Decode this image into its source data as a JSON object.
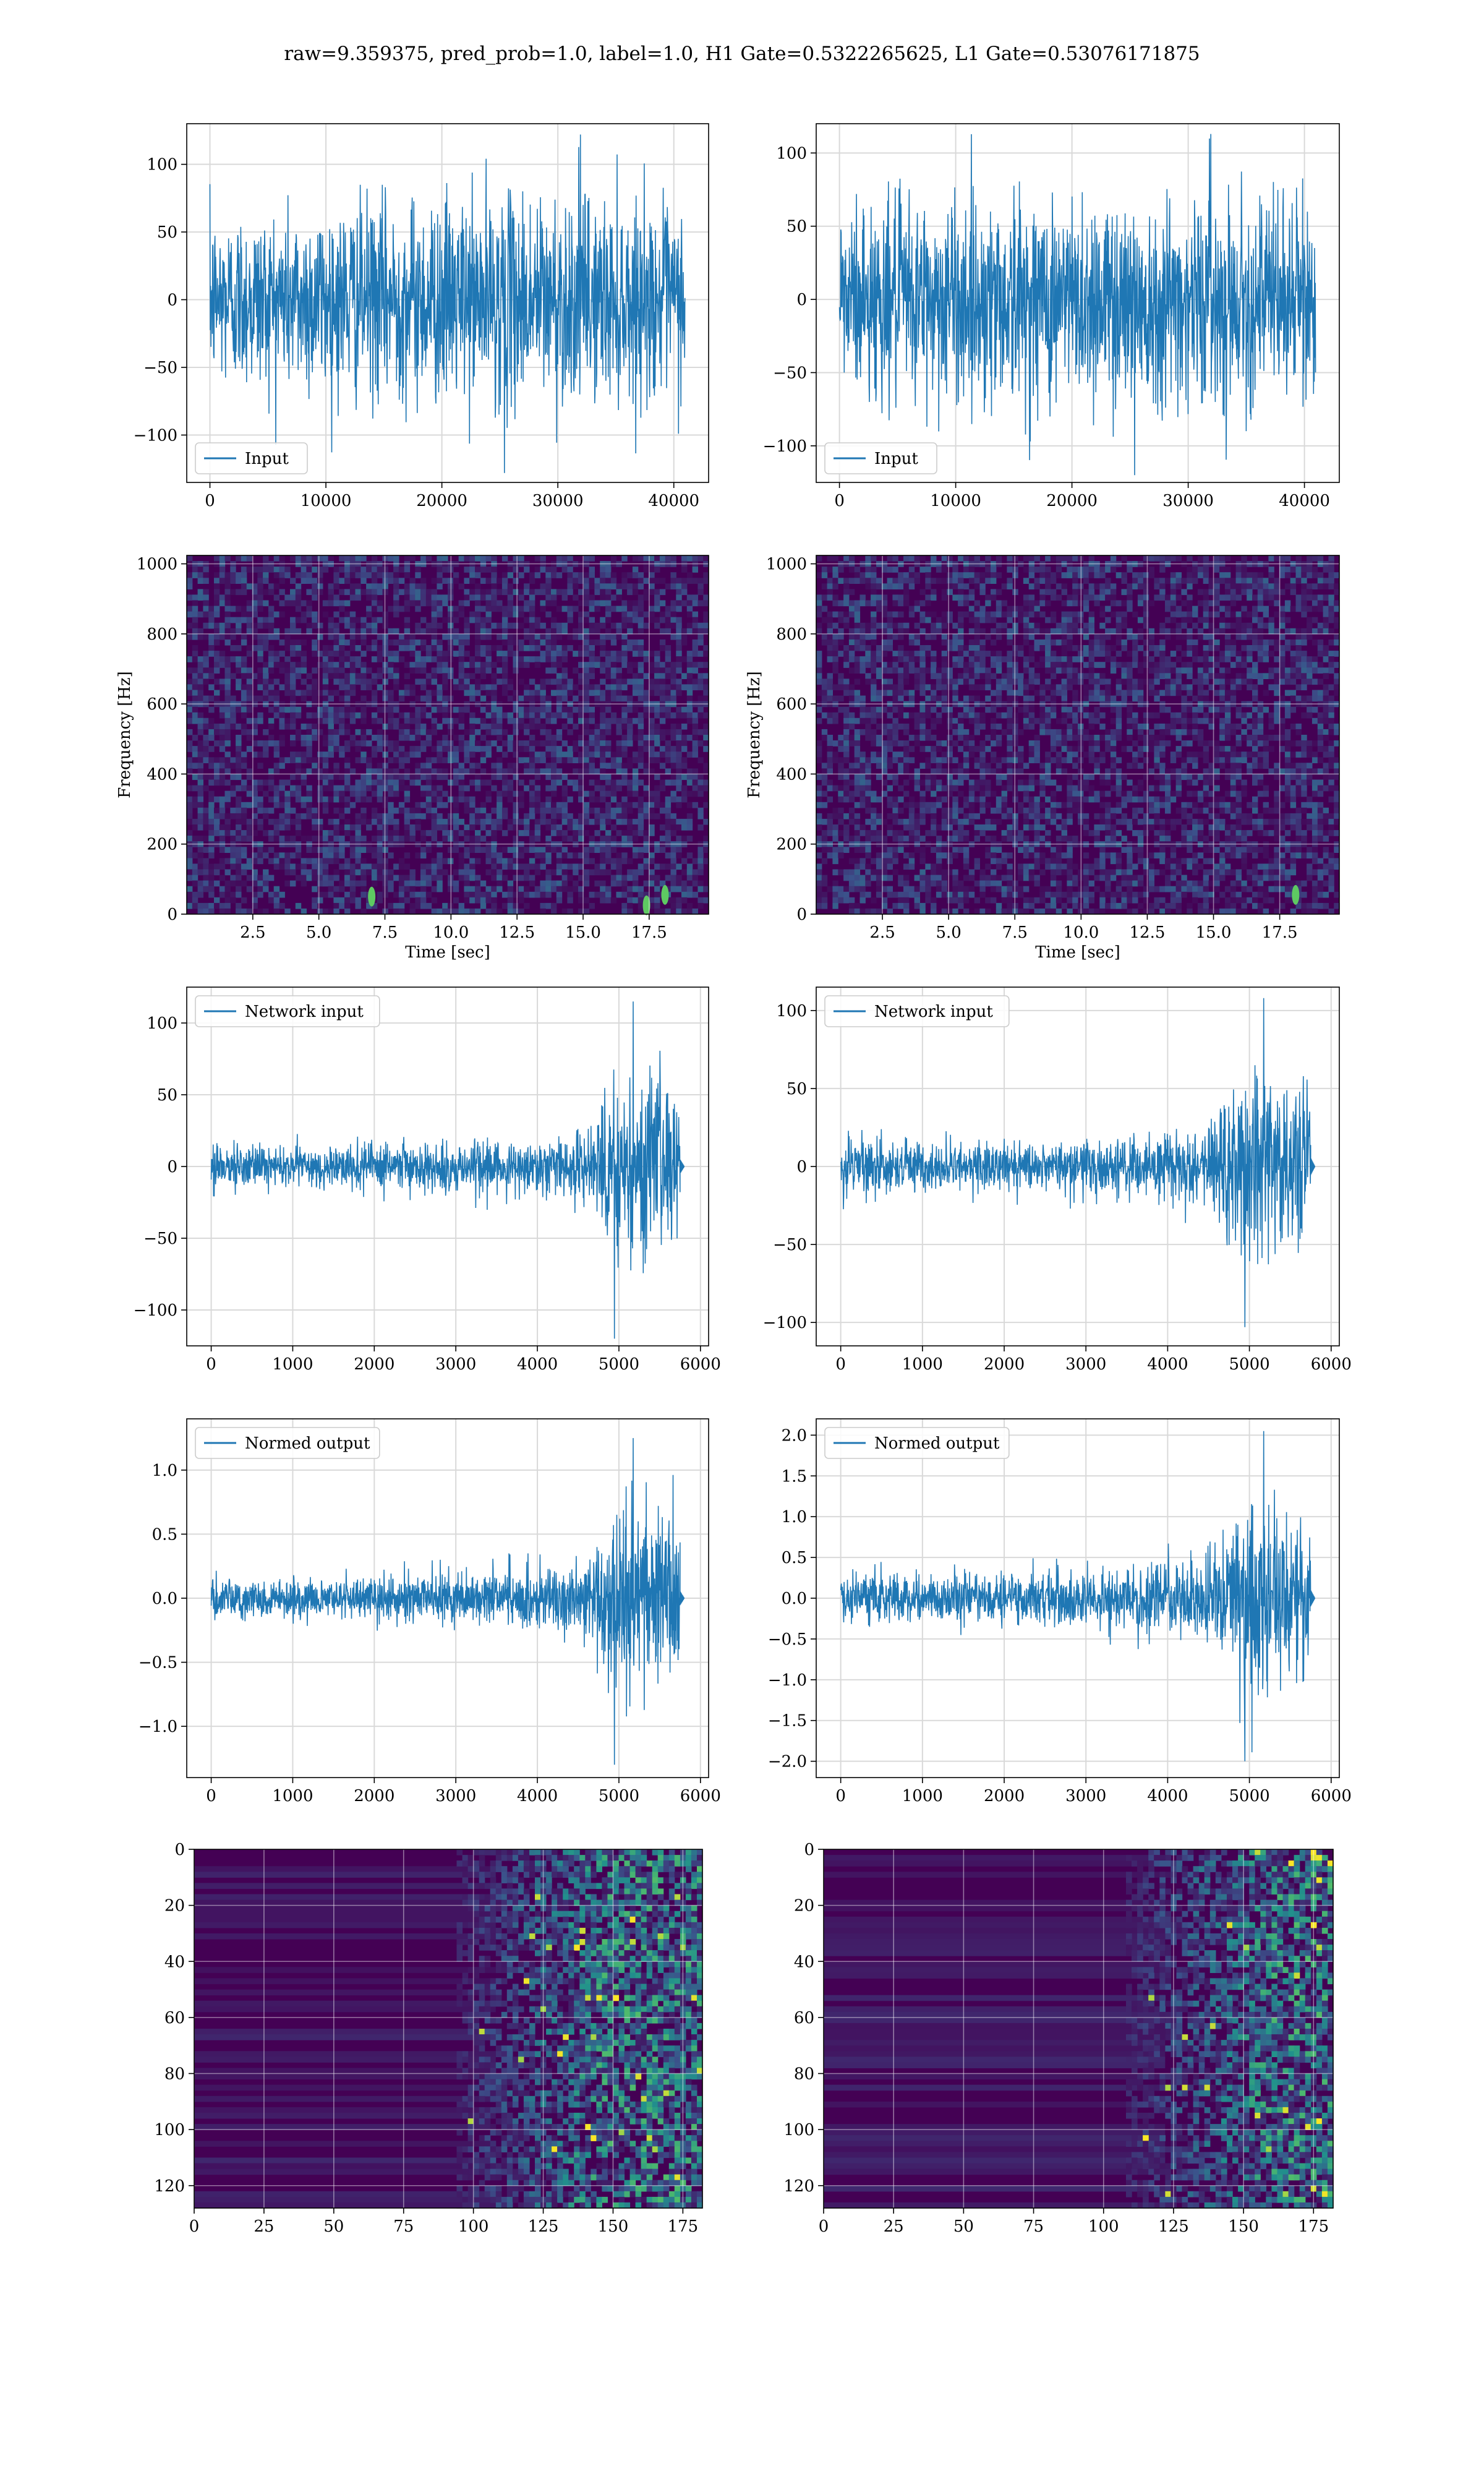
{
  "figure": {
    "suptitle": "raw=9.359375, pred_prob=1.0, label=1.0, H1 Gate=0.5322265625, L1 Gate=0.53076171875",
    "colors": {
      "line": "#1f77b4",
      "grid": "#d9d9d9",
      "viridis_low": "#440154",
      "viridis_mid": "#21918c",
      "viridis_high": "#fde725"
    }
  },
  "chart_data": [
    {
      "id": "input_h1",
      "type": "line",
      "legend": "Input",
      "legend_pos": "lower-left",
      "xlim": [
        -2000,
        43000
      ],
      "ylim": [
        -135,
        130
      ],
      "xticks": [
        0,
        10000,
        20000,
        30000,
        40000
      ],
      "yticks": [
        -100,
        -50,
        0,
        50,
        100
      ],
      "series": [
        {
          "name": "Input",
          "x_range": [
            0,
            40960
          ],
          "amplitude_envelope": [
            [
              0,
              80
            ],
            [
              10000,
              90
            ],
            [
              20000,
              95
            ],
            [
              30000,
              100
            ],
            [
              40960,
              85
            ]
          ],
          "peak_max": 122,
          "peak_min": -128
        }
      ],
      "grid": true
    },
    {
      "id": "input_l1",
      "type": "line",
      "legend": "Input",
      "legend_pos": "lower-left",
      "xlim": [
        -2000,
        43000
      ],
      "ylim": [
        -125,
        120
      ],
      "xticks": [
        0,
        10000,
        20000,
        30000,
        40000
      ],
      "yticks": [
        -100,
        -50,
        0,
        50,
        100
      ],
      "series": [
        {
          "name": "Input",
          "x_range": [
            0,
            40960
          ],
          "amplitude_envelope": [
            [
              0,
              85
            ],
            [
              10000,
              90
            ],
            [
              20000,
              92
            ],
            [
              30000,
              90
            ],
            [
              40960,
              85
            ]
          ],
          "peak_max": 113,
          "peak_min": -120
        }
      ],
      "grid": true
    },
    {
      "id": "spec_h1",
      "type": "heatmap",
      "xlabel": "Time [sec]",
      "ylabel": "Frequency [Hz]",
      "xlim": [
        0,
        19.75
      ],
      "ylim": [
        0,
        1024
      ],
      "xticks": [
        "2.5",
        "5.0",
        "7.5",
        "10.0",
        "12.5",
        "15.0",
        "17.5"
      ],
      "yticks": [
        "0",
        "200",
        "400",
        "600",
        "800",
        "1000"
      ],
      "colormap": "viridis",
      "hotspots": [
        {
          "t": 7.0,
          "f": 50
        },
        {
          "t": 18.1,
          "f": 55
        },
        {
          "t": 17.4,
          "f": 25
        }
      ],
      "grid": true
    },
    {
      "id": "spec_l1",
      "type": "heatmap",
      "xlabel": "Time [sec]",
      "ylabel": "Frequency [Hz]",
      "xlim": [
        0,
        19.75
      ],
      "ylim": [
        0,
        1024
      ],
      "xticks": [
        "2.5",
        "5.0",
        "7.5",
        "10.0",
        "12.5",
        "15.0",
        "17.5"
      ],
      "yticks": [
        "0",
        "200",
        "400",
        "600",
        "800",
        "1000"
      ],
      "colormap": "viridis",
      "hotspots": [
        {
          "t": 18.1,
          "f": 55
        }
      ],
      "grid": true
    },
    {
      "id": "net_h1",
      "type": "line",
      "legend": "Network input",
      "legend_pos": "upper-left",
      "xlim": [
        -300,
        6100
      ],
      "ylim": [
        -125,
        125
      ],
      "xticks": [
        0,
        1000,
        2000,
        3000,
        4000,
        5000,
        6000
      ],
      "yticks": [
        -100,
        -50,
        0,
        50,
        100
      ],
      "series": [
        {
          "name": "Network input",
          "x_range": [
            0,
            5750
          ],
          "amplitude_envelope": [
            [
              0,
              20
            ],
            [
              1000,
              18
            ],
            [
              2000,
              20
            ],
            [
              3000,
              22
            ],
            [
              3500,
              25
            ],
            [
              4000,
              25
            ],
            [
              4500,
              30
            ],
            [
              4700,
              55
            ],
            [
              5000,
              75
            ],
            [
              5300,
              80
            ],
            [
              5600,
              75
            ],
            [
              5750,
              70
            ]
          ],
          "peak_max": 115,
          "peak_min": -120,
          "tail_x": 5800
        }
      ],
      "grid": true
    },
    {
      "id": "net_l1",
      "type": "line",
      "legend": "Network input",
      "legend_pos": "upper-left",
      "xlim": [
        -300,
        6100
      ],
      "ylim": [
        -115,
        115
      ],
      "xticks": [
        0,
        1000,
        2000,
        3000,
        4000,
        5000,
        6000
      ],
      "yticks": [
        -100,
        -50,
        0,
        50,
        100
      ],
      "series": [
        {
          "name": "Network input",
          "x_range": [
            0,
            5750
          ],
          "amplitude_envelope": [
            [
              0,
              22
            ],
            [
              1000,
              20
            ],
            [
              2000,
              20
            ],
            [
              3000,
              22
            ],
            [
              3500,
              25
            ],
            [
              4000,
              30
            ],
            [
              4500,
              35
            ],
            [
              4700,
              60
            ],
            [
              5000,
              85
            ],
            [
              5300,
              75
            ],
            [
              5600,
              65
            ],
            [
              5750,
              60
            ]
          ],
          "peak_max": 108,
          "peak_min": -103,
          "tail_x": 5800
        }
      ],
      "grid": true
    },
    {
      "id": "norm_h1",
      "type": "line",
      "legend": "Normed output",
      "legend_pos": "upper-left",
      "xlim": [
        -300,
        6100
      ],
      "ylim": [
        -1.4,
        1.4
      ],
      "xticks": [
        0,
        1000,
        2000,
        3000,
        4000,
        5000,
        6000
      ],
      "yticks": [
        "−1.0",
        "−0.5",
        "0.0",
        "0.5",
        "1.0"
      ],
      "ytick_values": [
        -1.0,
        -0.5,
        0.0,
        0.5,
        1.0
      ],
      "series": [
        {
          "name": "Normed output",
          "x_range": [
            0,
            5750
          ],
          "amplitude_envelope": [
            [
              0,
              0.22
            ],
            [
              1000,
              0.2
            ],
            [
              2000,
              0.22
            ],
            [
              3000,
              0.25
            ],
            [
              3500,
              0.28
            ],
            [
              4000,
              0.28
            ],
            [
              4500,
              0.33
            ],
            [
              4700,
              0.6
            ],
            [
              5000,
              0.82
            ],
            [
              5300,
              0.88
            ],
            [
              5600,
              0.82
            ],
            [
              5750,
              0.75
            ]
          ],
          "peak_max": 1.25,
          "peak_min": -1.3,
          "tail_x": 5800
        }
      ],
      "grid": true
    },
    {
      "id": "norm_l1",
      "type": "line",
      "legend": "Normed output",
      "legend_pos": "upper-left",
      "xlim": [
        -300,
        6100
      ],
      "ylim": [
        -2.2,
        2.2
      ],
      "xticks": [
        0,
        1000,
        2000,
        3000,
        4000,
        5000,
        6000
      ],
      "yticks": [
        "−2.0",
        "−1.5",
        "−1.0",
        "−0.5",
        "0.0",
        "0.5",
        "1.0",
        "1.5",
        "2.0"
      ],
      "ytick_values": [
        -2.0,
        -1.5,
        -1.0,
        -0.5,
        0.0,
        0.5,
        1.0,
        1.5,
        2.0
      ],
      "series": [
        {
          "name": "Normed output",
          "x_range": [
            0,
            5750
          ],
          "amplitude_envelope": [
            [
              0,
              0.4
            ],
            [
              1000,
              0.38
            ],
            [
              2000,
              0.38
            ],
            [
              3000,
              0.42
            ],
            [
              3500,
              0.48
            ],
            [
              4000,
              0.55
            ],
            [
              4500,
              0.65
            ],
            [
              4700,
              1.1
            ],
            [
              5000,
              1.6
            ],
            [
              5300,
              1.4
            ],
            [
              5600,
              1.2
            ],
            [
              5750,
              1.1
            ]
          ],
          "peak_max": 2.05,
          "peak_min": -2.0,
          "tail_x": 5800
        }
      ],
      "grid": true
    },
    {
      "id": "feat_h1",
      "type": "heatmap",
      "xlim": [
        0,
        182
      ],
      "ylim": [
        128,
        0
      ],
      "xticks": [
        "0",
        "25",
        "50",
        "75",
        "100",
        "125",
        "150",
        "175"
      ],
      "yticks": [
        "0",
        "20",
        "40",
        "60",
        "80",
        "100",
        "120"
      ],
      "colormap": "viridis",
      "onset_col": 108,
      "grid": true
    },
    {
      "id": "feat_l1",
      "type": "heatmap",
      "xlim": [
        0,
        182
      ],
      "ylim": [
        128,
        0
      ],
      "xticks": [
        "0",
        "25",
        "50",
        "75",
        "100",
        "125",
        "150",
        "175"
      ],
      "yticks": [
        "0",
        "20",
        "40",
        "60",
        "80",
        "100",
        "120"
      ],
      "colormap": "viridis",
      "onset_col": 122,
      "grid": true
    }
  ]
}
